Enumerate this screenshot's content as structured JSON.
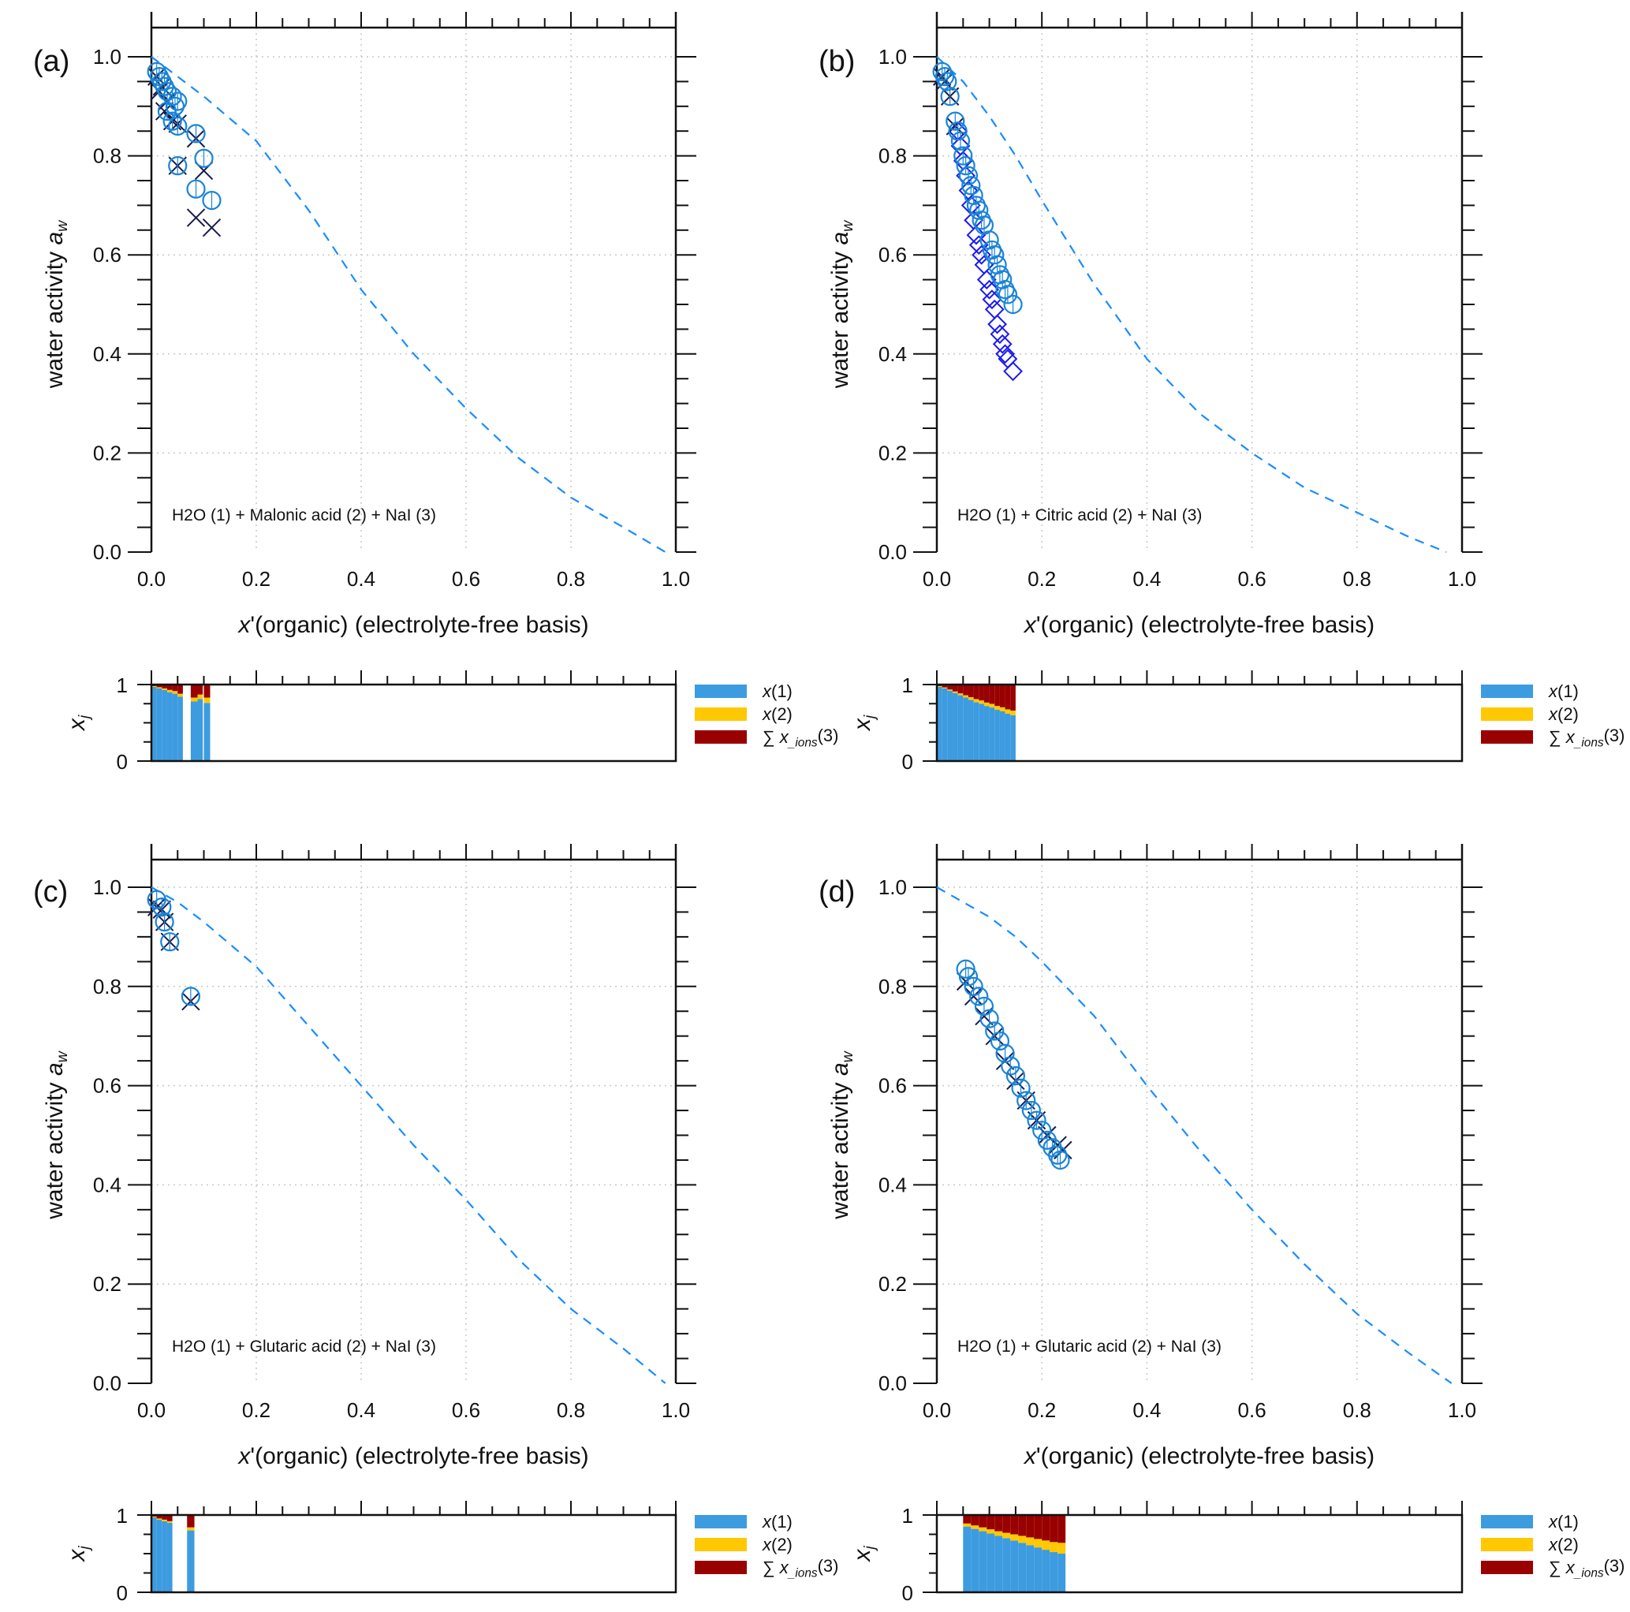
{
  "colors": {
    "model_line": "#1a8cff",
    "circle": "#1a84d6",
    "cross": "#1a1a4a",
    "diamond": "#1a1aee",
    "x1": "#3d9be0",
    "x2": "#ffc800",
    "ions": "#990000",
    "grid": "#c8c8c8"
  },
  "legend": {
    "x1": "x(1)",
    "x2": "x(2)",
    "ions": "∑ x_ions(3)"
  },
  "chart_data": [
    {
      "type": "scatter",
      "panel_label": "(a)",
      "annotation": "H2O (1) + Malonic  acid (2) + NaI (3)",
      "xlabel": "x'(organic)  (electrolyte-free basis)",
      "ylabel": "water activity a_w",
      "bar_ylabel": "x_j",
      "xlim": [
        0,
        1
      ],
      "ylim": [
        0,
        1.06
      ],
      "grid": true,
      "xticks": [
        "0.0",
        "0.2",
        "0.4",
        "0.6",
        "0.8",
        "1.0"
      ],
      "yticks": [
        "0.0",
        "0.2",
        "0.4",
        "0.6",
        "0.8",
        "1.0"
      ],
      "model_line": [
        [
          0,
          1
        ],
        [
          0.05,
          0.96
        ],
        [
          0.1,
          0.92
        ],
        [
          0.2,
          0.83
        ],
        [
          0.3,
          0.69
        ],
        [
          0.4,
          0.53
        ],
        [
          0.5,
          0.4
        ],
        [
          0.6,
          0.29
        ],
        [
          0.7,
          0.19
        ],
        [
          0.8,
          0.11
        ],
        [
          0.9,
          0.05
        ],
        [
          0.98,
          0.0
        ]
      ],
      "circles": [
        [
          0.01,
          0.97
        ],
        [
          0.015,
          0.96
        ],
        [
          0.02,
          0.95
        ],
        [
          0.025,
          0.94
        ],
        [
          0.03,
          0.93
        ],
        [
          0.04,
          0.92
        ],
        [
          0.045,
          0.9
        ],
        [
          0.05,
          0.91
        ],
        [
          0.03,
          0.89
        ],
        [
          0.04,
          0.87
        ],
        [
          0.05,
          0.86
        ],
        [
          0.085,
          0.845
        ],
        [
          0.05,
          0.78
        ],
        [
          0.1,
          0.795
        ],
        [
          0.085,
          0.733
        ],
        [
          0.115,
          0.71
        ]
      ],
      "crosses": [
        [
          0.01,
          0.96
        ],
        [
          0.015,
          0.93
        ],
        [
          0.02,
          0.94
        ],
        [
          0.025,
          0.89
        ],
        [
          0.03,
          0.91
        ],
        [
          0.04,
          0.87
        ],
        [
          0.05,
          0.865
        ],
        [
          0.085,
          0.835
        ],
        [
          0.05,
          0.78
        ],
        [
          0.1,
          0.77
        ],
        [
          0.085,
          0.675
        ],
        [
          0.115,
          0.655
        ]
      ],
      "diamonds": [],
      "composition": [
        [
          0,
          0.01,
          0.97,
          0.01
        ],
        [
          0.01,
          0.02,
          0.95,
          0.015
        ],
        [
          0.02,
          0.03,
          0.93,
          0.02
        ],
        [
          0.03,
          0.04,
          0.9,
          0.03
        ],
        [
          0.04,
          0.05,
          0.88,
          0.035
        ],
        [
          0.05,
          0.06,
          0.84,
          0.04
        ],
        [
          0.075,
          0.088,
          0.78,
          0.05
        ],
        [
          0.088,
          0.098,
          0.81,
          0.06
        ],
        [
          0.1,
          0.112,
          0.76,
          0.07
        ]
      ]
    },
    {
      "type": "scatter",
      "panel_label": "(b)",
      "annotation": "H2O (1) + Citric  acid (2) + NaI (3)",
      "xlabel": "x'(organic)  (electrolyte-free basis)",
      "ylabel": "water activity a_w",
      "bar_ylabel": "x_j",
      "xlim": [
        0,
        1
      ],
      "ylim": [
        0,
        1.06
      ],
      "grid": true,
      "xticks": [
        "0.0",
        "0.2",
        "0.4",
        "0.6",
        "0.8",
        "1.0"
      ],
      "yticks": [
        "0.0",
        "0.2",
        "0.4",
        "0.6",
        "0.8",
        "1.0"
      ],
      "model_line": [
        [
          0,
          1
        ],
        [
          0.05,
          0.95
        ],
        [
          0.1,
          0.88
        ],
        [
          0.15,
          0.8
        ],
        [
          0.2,
          0.71
        ],
        [
          0.3,
          0.54
        ],
        [
          0.4,
          0.39
        ],
        [
          0.5,
          0.28
        ],
        [
          0.6,
          0.2
        ],
        [
          0.7,
          0.13
        ],
        [
          0.8,
          0.08
        ],
        [
          0.9,
          0.03
        ],
        [
          0.97,
          0.0
        ]
      ],
      "circles": [
        [
          0.01,
          0.97
        ],
        [
          0.015,
          0.96
        ],
        [
          0.02,
          0.95
        ],
        [
          0.025,
          0.92
        ],
        [
          0.035,
          0.87
        ],
        [
          0.04,
          0.85
        ],
        [
          0.045,
          0.83
        ],
        [
          0.05,
          0.8
        ],
        [
          0.055,
          0.78
        ],
        [
          0.06,
          0.76
        ],
        [
          0.065,
          0.74
        ],
        [
          0.07,
          0.72
        ],
        [
          0.075,
          0.7
        ],
        [
          0.08,
          0.69
        ],
        [
          0.085,
          0.67
        ],
        [
          0.09,
          0.66
        ],
        [
          0.1,
          0.63
        ],
        [
          0.105,
          0.61
        ],
        [
          0.11,
          0.6
        ],
        [
          0.115,
          0.58
        ],
        [
          0.12,
          0.56
        ],
        [
          0.125,
          0.55
        ],
        [
          0.13,
          0.53
        ],
        [
          0.135,
          0.52
        ],
        [
          0.145,
          0.5
        ]
      ],
      "crosses": [
        [
          0.01,
          0.96
        ],
        [
          0.015,
          0.95
        ],
        [
          0.025,
          0.92
        ],
        [
          0.035,
          0.86
        ]
      ],
      "diamonds": [
        [
          0.04,
          0.85
        ],
        [
          0.045,
          0.82
        ],
        [
          0.05,
          0.79
        ],
        [
          0.055,
          0.76
        ],
        [
          0.06,
          0.73
        ],
        [
          0.065,
          0.7
        ],
        [
          0.07,
          0.67
        ],
        [
          0.075,
          0.64
        ],
        [
          0.08,
          0.62
        ],
        [
          0.085,
          0.6
        ],
        [
          0.09,
          0.58
        ],
        [
          0.095,
          0.55
        ],
        [
          0.1,
          0.53
        ],
        [
          0.105,
          0.51
        ],
        [
          0.11,
          0.49
        ],
        [
          0.115,
          0.46
        ],
        [
          0.12,
          0.44
        ],
        [
          0.125,
          0.42
        ],
        [
          0.13,
          0.4
        ],
        [
          0.135,
          0.39
        ],
        [
          0.145,
          0.365
        ]
      ],
      "composition": [
        [
          0,
          0.01,
          0.97,
          0.01
        ],
        [
          0.01,
          0.02,
          0.95,
          0.012
        ],
        [
          0.02,
          0.03,
          0.92,
          0.015
        ],
        [
          0.03,
          0.04,
          0.89,
          0.02
        ],
        [
          0.04,
          0.05,
          0.86,
          0.025
        ],
        [
          0.05,
          0.06,
          0.83,
          0.03
        ],
        [
          0.06,
          0.07,
          0.8,
          0.035
        ],
        [
          0.07,
          0.08,
          0.77,
          0.04
        ],
        [
          0.08,
          0.09,
          0.75,
          0.042
        ],
        [
          0.09,
          0.1,
          0.72,
          0.045
        ],
        [
          0.1,
          0.11,
          0.7,
          0.048
        ],
        [
          0.11,
          0.12,
          0.67,
          0.05
        ],
        [
          0.12,
          0.13,
          0.65,
          0.053
        ],
        [
          0.13,
          0.14,
          0.62,
          0.056
        ],
        [
          0.14,
          0.15,
          0.6,
          0.06
        ]
      ]
    },
    {
      "type": "scatter",
      "panel_label": "(c)",
      "annotation": "H2O (1) + Glutaric  acid (2) + NaI (3)",
      "xlabel": "x'(organic)  (electrolyte-free basis)",
      "ylabel": "water activity a_w",
      "bar_ylabel": "x_j",
      "xlim": [
        0,
        1
      ],
      "ylim": [
        0,
        1.06
      ],
      "grid": true,
      "xticks": [
        "0.0",
        "0.2",
        "0.4",
        "0.6",
        "0.8",
        "1.0"
      ],
      "yticks": [
        "0.0",
        "0.2",
        "0.4",
        "0.6",
        "0.8",
        "1.0"
      ],
      "model_line": [
        [
          0,
          1
        ],
        [
          0.05,
          0.97
        ],
        [
          0.1,
          0.93
        ],
        [
          0.2,
          0.84
        ],
        [
          0.3,
          0.72
        ],
        [
          0.4,
          0.6
        ],
        [
          0.5,
          0.48
        ],
        [
          0.6,
          0.37
        ],
        [
          0.7,
          0.25
        ],
        [
          0.8,
          0.15
        ],
        [
          0.9,
          0.07
        ],
        [
          0.98,
          0.0
        ]
      ],
      "circles": [
        [
          0.01,
          0.975
        ],
        [
          0.02,
          0.96
        ],
        [
          0.025,
          0.93
        ],
        [
          0.035,
          0.89
        ],
        [
          0.075,
          0.78
        ]
      ],
      "crosses": [
        [
          0.01,
          0.96
        ],
        [
          0.02,
          0.955
        ],
        [
          0.025,
          0.93
        ],
        [
          0.035,
          0.89
        ],
        [
          0.075,
          0.77
        ]
      ],
      "diamonds": [],
      "composition": [
        [
          0,
          0.01,
          0.97,
          0.01
        ],
        [
          0.01,
          0.02,
          0.94,
          0.015
        ],
        [
          0.02,
          0.03,
          0.92,
          0.02
        ],
        [
          0.03,
          0.04,
          0.9,
          0.02
        ],
        [
          0.068,
          0.082,
          0.8,
          0.04
        ]
      ]
    },
    {
      "type": "scatter",
      "panel_label": "(d)",
      "annotation": "H2O (1) + Glutaric  acid (2) + NaI (3)",
      "xlabel": "x'(organic)  (electrolyte-free basis)",
      "ylabel": "water activity a_w",
      "bar_ylabel": "x_j",
      "xlim": [
        0,
        1
      ],
      "ylim": [
        0,
        1.06
      ],
      "grid": true,
      "xticks": [
        "0.0",
        "0.2",
        "0.4",
        "0.6",
        "0.8",
        "1.0"
      ],
      "yticks": [
        "0.0",
        "0.2",
        "0.4",
        "0.6",
        "0.8",
        "1.0"
      ],
      "model_line": [
        [
          0,
          1
        ],
        [
          0.05,
          0.97
        ],
        [
          0.1,
          0.94
        ],
        [
          0.15,
          0.9
        ],
        [
          0.2,
          0.85
        ],
        [
          0.3,
          0.74
        ],
        [
          0.4,
          0.6
        ],
        [
          0.5,
          0.47
        ],
        [
          0.6,
          0.35
        ],
        [
          0.7,
          0.24
        ],
        [
          0.8,
          0.14
        ],
        [
          0.9,
          0.06
        ],
        [
          0.98,
          0.0
        ]
      ],
      "circles": [
        [
          0.055,
          0.835
        ],
        [
          0.06,
          0.82
        ],
        [
          0.07,
          0.8
        ],
        [
          0.08,
          0.78
        ],
        [
          0.09,
          0.76
        ],
        [
          0.1,
          0.735
        ],
        [
          0.11,
          0.71
        ],
        [
          0.12,
          0.69
        ],
        [
          0.13,
          0.665
        ],
        [
          0.14,
          0.64
        ],
        [
          0.15,
          0.62
        ],
        [
          0.16,
          0.595
        ],
        [
          0.17,
          0.57
        ],
        [
          0.18,
          0.55
        ],
        [
          0.19,
          0.53
        ],
        [
          0.2,
          0.51
        ],
        [
          0.21,
          0.49
        ],
        [
          0.22,
          0.475
        ],
        [
          0.23,
          0.46
        ],
        [
          0.235,
          0.45
        ]
      ],
      "crosses": [
        [
          0.055,
          0.81
        ],
        [
          0.07,
          0.78
        ],
        [
          0.09,
          0.74
        ],
        [
          0.11,
          0.7
        ],
        [
          0.13,
          0.65
        ],
        [
          0.15,
          0.61
        ],
        [
          0.17,
          0.57
        ],
        [
          0.19,
          0.53
        ],
        [
          0.21,
          0.5
        ],
        [
          0.23,
          0.48
        ],
        [
          0.24,
          0.47
        ]
      ],
      "diamonds": [],
      "composition": [
        [
          0.05,
          0.065,
          0.85,
          0.04
        ],
        [
          0.065,
          0.08,
          0.82,
          0.045
        ],
        [
          0.08,
          0.095,
          0.79,
          0.05
        ],
        [
          0.095,
          0.11,
          0.76,
          0.055
        ],
        [
          0.11,
          0.125,
          0.73,
          0.06
        ],
        [
          0.125,
          0.14,
          0.7,
          0.07
        ],
        [
          0.14,
          0.155,
          0.67,
          0.08
        ],
        [
          0.155,
          0.17,
          0.64,
          0.09
        ],
        [
          0.17,
          0.185,
          0.61,
          0.1
        ],
        [
          0.185,
          0.2,
          0.58,
          0.11
        ],
        [
          0.2,
          0.215,
          0.55,
          0.12
        ],
        [
          0.215,
          0.23,
          0.52,
          0.13
        ],
        [
          0.23,
          0.245,
          0.5,
          0.14
        ]
      ]
    }
  ]
}
